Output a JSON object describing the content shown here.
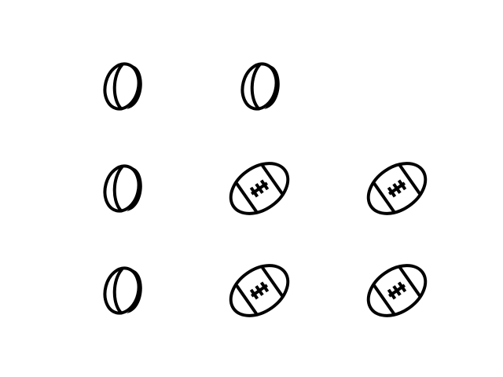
{
  "grid": {
    "rows": [
      [
        "rugby-ball-icon",
        "rugby-ball-icon",
        ""
      ],
      [
        "rugby-ball-icon",
        "american-football-icon",
        "american-football-icon"
      ],
      [
        "rugby-ball-icon",
        "american-football-icon",
        "american-football-icon"
      ]
    ],
    "icon_color": "#000000",
    "background": "#ffffff"
  }
}
